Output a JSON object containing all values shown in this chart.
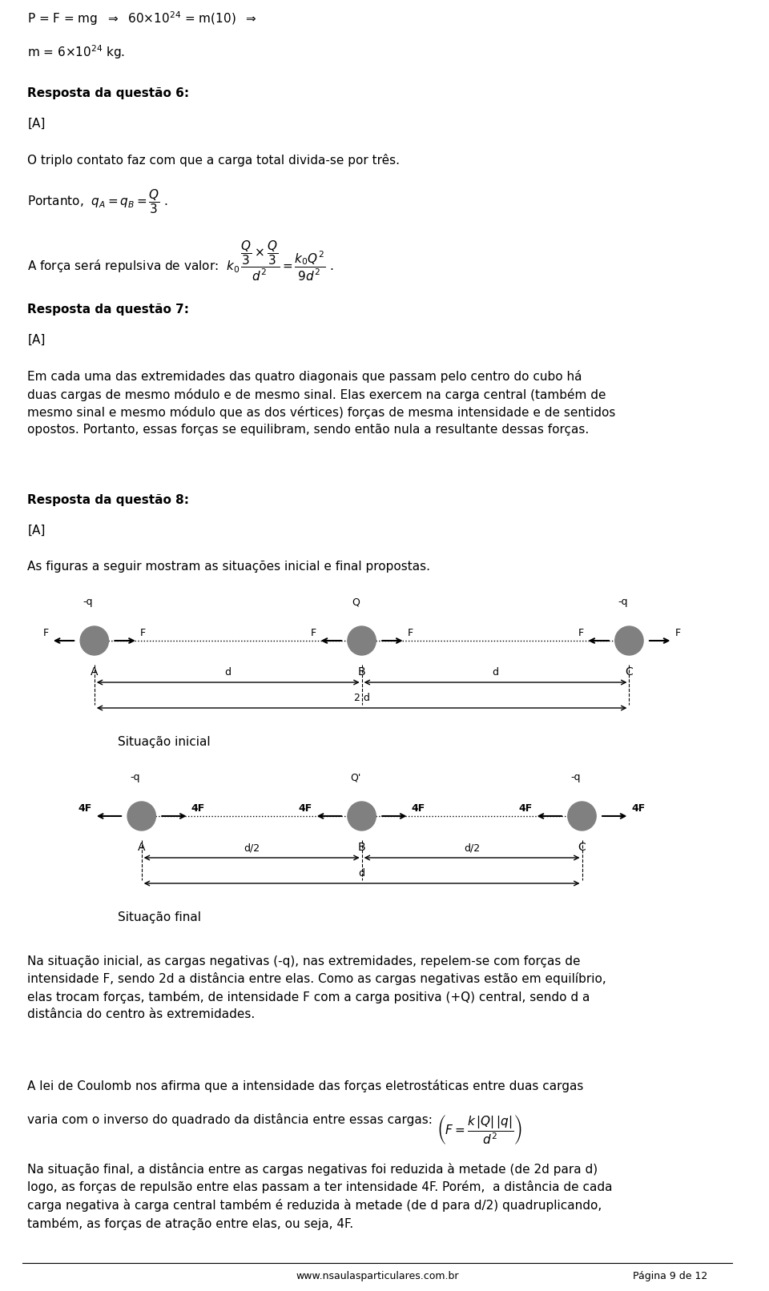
{
  "bg_color": "#ffffff",
  "text_color": "#000000",
  "line1": "P = F = mg  ⇒  60×10²⁴ = m(10)  ⇒",
  "line2": "m = 6×10²⁴ kg.",
  "section6_title": "Resposta da questão 6:",
  "section6_answer": "[A]",
  "section6_text1": "O triplo contato faz com que a carga total divida-se por três.",
  "section6_text2": "Portanto,  q₂ = qʙ =",
  "section6_frac": "Q / 3",
  "section6_force": "A força será repulsiva de valor:  k₀",
  "section7_title": "Resposta da questão 7:",
  "section7_answer": "[A]",
  "section7_text": "Em cada uma das extremidades das quatro diagonais que passam pelo centro do cubo há\nduas cargas de mesmo módulo e de mesmo sinal. Elas exercem na carga central (também de\nmesmo sinal e mesmo módulo que as dos vértices) forças de mesma intensidade e de sentidos\nopostos. Portanto, essas forças se equilibram, sendo então nula a resultante dessas forças.",
  "section8_title": "Resposta da questão 8:",
  "section8_answer": "[A]",
  "section8_text1": "As figuras a seguir mostram as situações inicial e final propostas.",
  "sit_inicial": "Situação inicial",
  "sit_final": "Situação final",
  "bottom_text1": "Na situação inicial, as cargas negativas (-q), nas extremidades, repelem-se com forças de\nintensidade F, sendo 2d a distância entre elas. Como as cargas negativas estão em equilíbrio,\nelas trocam forças, também, de intensidade F com a carga positiva (+Q) central, sendo d a\ndistância do centro às extremidades.",
  "bottom_text2": "A lei de Coulomb nos afirma que a intensidade das forças eletrostáticas entre duas cargas\nvaria com o inverso do quadrado da distância entre essas cargas:",
  "bottom_formula": "F = k|Q||q| / d²",
  "bottom_text3": "Na situação final, a distância entre as cargas negativas foi reduzida à metade (de 2d para d)\nlogo, as forças de repulsão entre elas passam a ter intensidade 4F. Porém,  a distância de cada\ncarga negativa à carga central também é reduzida à metade (de d para d/2) quadruplicando,\ntambém, as forças de atração entre elas, ou seja, 4F.",
  "website": "www.nsaulasparticulares.com.br",
  "page": "Página 9 de 12"
}
